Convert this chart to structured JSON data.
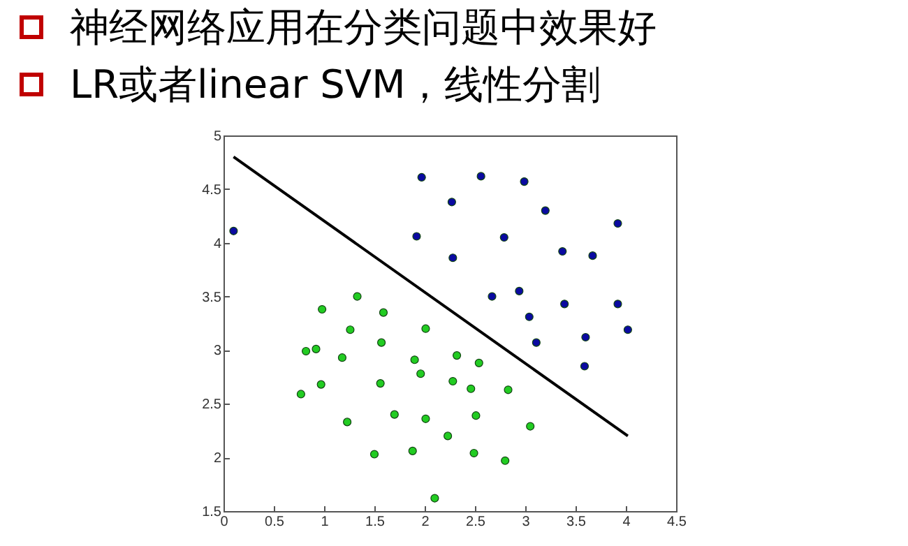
{
  "chart_data": {
    "type": "scatter",
    "title": "神经网络应用在分类问题中效果好",
    "subtitle": "LR或者linear SVM，线性分割",
    "xlim": [
      0,
      4.5
    ],
    "xticks": [
      0,
      0.5,
      1,
      1.5,
      2,
      2.5,
      3,
      3.5,
      4,
      4.5
    ],
    "ylim": [
      1.5,
      5
    ],
    "yticks": [
      1.5,
      2,
      2.5,
      3,
      3.5,
      4,
      4.5,
      5
    ],
    "grid": false,
    "marker": "circle",
    "series": [
      {
        "color": "#22cc22",
        "x": [
          1.33,
          0.98,
          1.59,
          1.26,
          2.01,
          0.82,
          0.92,
          1.57,
          1.18,
          1.9,
          2.32,
          1.96,
          2.54,
          0.97,
          1.56,
          0.77,
          2.28,
          2.46,
          2.83,
          1.7,
          1.23,
          2.01,
          2.51,
          3.05,
          2.23,
          1.5,
          1.88,
          2.49,
          2.8,
          2.1
        ],
        "values": [
          3.5,
          3.38,
          3.35,
          3.19,
          3.2,
          2.99,
          3.01,
          3.07,
          2.93,
          2.91,
          2.95,
          2.78,
          2.88,
          2.68,
          2.69,
          2.59,
          2.71,
          2.64,
          2.63,
          2.4,
          2.33,
          2.36,
          2.39,
          2.29,
          2.2,
          2.03,
          2.06,
          2.04,
          1.97,
          1.62
        ]
      },
      {
        "color": "#0a0aa0",
        "x": [
          0.1,
          1.97,
          2.56,
          2.99,
          2.27,
          3.2,
          3.92,
          1.92,
          2.79,
          2.28,
          3.37,
          3.67,
          2.67,
          2.94,
          3.39,
          3.92,
          3.04,
          4.02,
          3.11,
          3.6,
          3.59
        ],
        "values": [
          4.11,
          4.61,
          4.62,
          4.57,
          4.38,
          4.3,
          4.18,
          4.06,
          4.05,
          3.86,
          3.92,
          3.88,
          3.5,
          3.55,
          3.43,
          3.43,
          3.31,
          3.19,
          3.07,
          3.12,
          2.85
        ]
      },
      {
        "type": "line",
        "color": "#000000",
        "marker": "none",
        "line_style": "solid",
        "x": [
          0.1,
          4.02
        ],
        "values": [
          4.8,
          2.2
        ]
      }
    ]
  }
}
